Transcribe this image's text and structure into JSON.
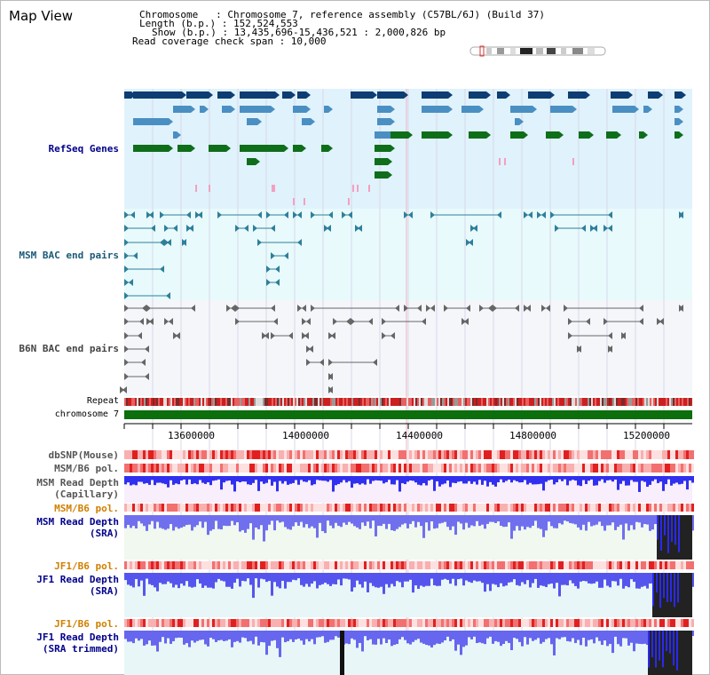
{
  "header": {
    "title": "Map View",
    "chromosome_line": "Chromosome   : Chromosome 7, reference assembly (C57BL/6J) (Build 37)",
    "length_line": "Length (b.p.) : 152,524,553",
    "show_line": "Show (b.p.) : 13,435,696-15,436,521 : 2,000,826 bp",
    "coverage_line": "Read coverage check span : 10,000"
  },
  "tracks": {
    "refseq": "RefSeq Genes",
    "msm_bac": "MSM BAC end pairs",
    "b6n_bac": "B6N BAC end pairs",
    "repeat": "Repeat",
    "chromosome": "chromosome 7",
    "dbsnp": "dbSNP(Mouse)",
    "msm_b6_pol_1": "MSM/B6 pol.",
    "msm_depth_cap_1": "MSM Read Depth",
    "msm_depth_cap_2": "(Capillary)",
    "msm_b6_pol_2": "MSM/B6 pol.",
    "msm_depth_sra_1": "MSM Read Depth",
    "msm_depth_sra_2": "(SRA)",
    "jf1_b6_pol_1": "JF1/B6 pol.",
    "jf1_depth_sra_1": "JF1 Read Depth",
    "jf1_depth_sra_2": "(SRA)",
    "jf1_b6_pol_2": "JF1/B6 pol.",
    "jf1_depth_trim_1": "JF1 Read Depth",
    "jf1_depth_trim_2": "(SRA trimmed)"
  },
  "axis": {
    "ticks": [
      "13600000",
      "14000000",
      "14400000",
      "14800000",
      "15200000"
    ]
  },
  "colors": {
    "refseq_bg": "#e0f2fc",
    "msm_bg": "#e8fafc",
    "b6n_bg": "#f4f6fa",
    "gene_dark": "#0d3d73",
    "gene_mid": "#4a8fc2",
    "gene_green": "#0f6e1a",
    "bac_teal": "#2f7f9a",
    "chrom_green": "#0c6e0c",
    "depth_blue": "#3a3aff",
    "title_blue": "#00008b",
    "orange_label": "#d08000"
  }
}
